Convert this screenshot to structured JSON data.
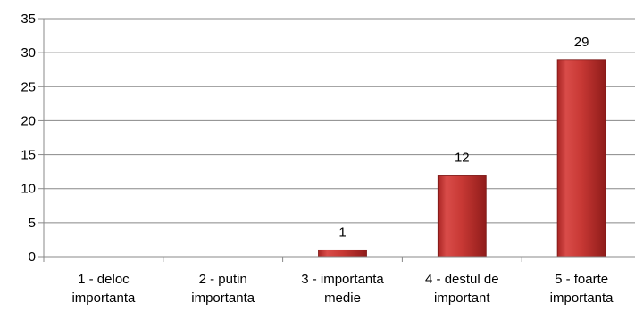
{
  "chart_data": {
    "type": "bar",
    "categories": [
      [
        "1 - deloc",
        "importanta"
      ],
      [
        "2 - putin",
        "importanta"
      ],
      [
        "3 - importanta",
        "medie"
      ],
      [
        "4 - destul de",
        "important"
      ],
      [
        "5 - foarte",
        "importanta"
      ]
    ],
    "values": [
      0,
      0,
      1,
      12,
      29
    ],
    "data_labels": [
      "",
      "",
      "1",
      "12",
      "29"
    ],
    "title": "",
    "xlabel": "",
    "ylabel": "",
    "ylim": [
      0,
      35
    ],
    "yticks": [
      "0",
      "5",
      "10",
      "15",
      "20",
      "25",
      "30",
      "35"
    ],
    "grid": true,
    "legend": "none",
    "bar_color": "#c0302e",
    "grid_color": "#888888"
  }
}
